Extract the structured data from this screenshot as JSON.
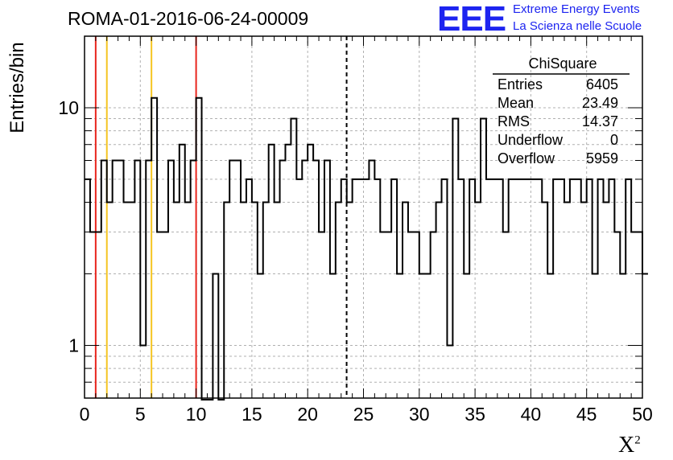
{
  "header": {
    "title": "ROMA-01-2016-06-24-00009",
    "logo_text": "EEE",
    "logo_line1": "Extreme Energy Events",
    "logo_line2": "La Scienza nelle Scuole"
  },
  "colors": {
    "logo": "#1d24f0",
    "red_line": "#e8251d",
    "yellow_line": "#f5c521",
    "histogram": "#000000",
    "grid": "#b0b0b0"
  },
  "chart_data": {
    "type": "histogram",
    "title": "ROMA-01-2016-06-24-00009",
    "xlabel": "X",
    "xlabel_superscript": "2",
    "ylabel": "Entries/bin",
    "xlim": [
      0,
      50
    ],
    "ylim": [
      0.6,
      20
    ],
    "yscale": "log",
    "grid": true,
    "x_ticks": [
      0,
      5,
      10,
      15,
      20,
      25,
      30,
      35,
      40,
      45,
      50
    ],
    "y_tick_labels": [
      {
        "value": 1,
        "label": "1"
      },
      {
        "value": 10,
        "label": "10"
      }
    ],
    "bin_width": 0.5,
    "bin_start": 0,
    "values": [
      5,
      3,
      3,
      6,
      4,
      6,
      6,
      4,
      4,
      6,
      1,
      6,
      11,
      3,
      3,
      6,
      4,
      7,
      4,
      6,
      11,
      0,
      0,
      2,
      0,
      4,
      6,
      6,
      4,
      5,
      4,
      2,
      4,
      7,
      4,
      6,
      7,
      9,
      5,
      6,
      7,
      6,
      3,
      6,
      2,
      4,
      5,
      4,
      5,
      5,
      5,
      6,
      5,
      3,
      3,
      5,
      2,
      4,
      3,
      3,
      2,
      2,
      3,
      4,
      5,
      1,
      9,
      5,
      2,
      5,
      4,
      9,
      5,
      5,
      5,
      3,
      5,
      5,
      5,
      5,
      5,
      5,
      4,
      2,
      5,
      5,
      4,
      5,
      5,
      4,
      5,
      2,
      5,
      4,
      5,
      3,
      2,
      5,
      3,
      3,
      2
    ],
    "vertical_lines": [
      {
        "x": 1.0,
        "color": "red",
        "style": "solid"
      },
      {
        "x": 2.0,
        "color": "yellow",
        "style": "solid"
      },
      {
        "x": 6.0,
        "color": "yellow",
        "style": "solid"
      },
      {
        "x": 10.0,
        "color": "red",
        "style": "solid"
      },
      {
        "x": 23.49,
        "color": "black",
        "style": "dashed"
      }
    ],
    "stats_box": {
      "title": "ChiSquare",
      "rows": [
        {
          "label": "Entries",
          "value": "6405"
        },
        {
          "label": "Mean",
          "value": "23.49"
        },
        {
          "label": "RMS",
          "value": "14.37"
        },
        {
          "label": "Underflow",
          "value": "0"
        },
        {
          "label": "Overflow",
          "value": "5959"
        }
      ]
    }
  }
}
